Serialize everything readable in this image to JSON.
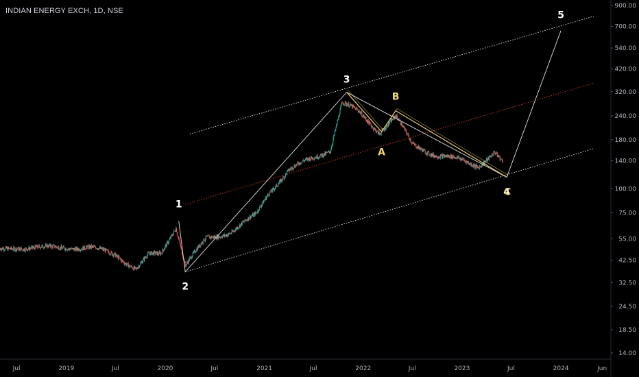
{
  "header": {
    "title": "INDIAN ENERGY EXCH, 1D, NSE"
  },
  "colors": {
    "background": "#000000",
    "up_candle": "#26a69a",
    "down_candle": "#ef5350",
    "channel_line": "#d8d8d8",
    "median_line": "#c0392b",
    "impulse_wave": "#cfcfcf",
    "corrective_wave": "#e8d36a",
    "axis_text": "#b2b5be",
    "impulse_label": "#ffffff",
    "corrective_label": "#f5d76e"
  },
  "chart_data": {
    "type": "candlestick",
    "title": "INDIAN ENERGY EXCH, 1D, NSE",
    "y_scale": "log",
    "ylim": [
      13,
      960
    ],
    "xlim": [
      "2018-05-01",
      "2024-07-01"
    ],
    "y_ticks": [
      "900.00",
      "700.00",
      "540.00",
      "420.00",
      "320.00",
      "240.00",
      "180.00",
      "140.00",
      "100.00",
      "75.00",
      "55.00",
      "42.50",
      "32.50",
      "24.50",
      "18.50",
      "14.00"
    ],
    "x_ticks": [
      {
        "date": "2018-07-01",
        "label": "Jul"
      },
      {
        "date": "2019-01-01",
        "label": "2019"
      },
      {
        "date": "2019-07-01",
        "label": "Jul"
      },
      {
        "date": "2020-01-01",
        "label": "2020"
      },
      {
        "date": "2020-07-01",
        "label": "Jul"
      },
      {
        "date": "2021-01-01",
        "label": "2021"
      },
      {
        "date": "2021-07-01",
        "label": "Jul"
      },
      {
        "date": "2022-01-01",
        "label": "2022"
      },
      {
        "date": "2022-07-01",
        "label": "Jul"
      },
      {
        "date": "2023-01-01",
        "label": "2023"
      },
      {
        "date": "2023-07-01",
        "label": "Jul"
      },
      {
        "date": "2024-01-01",
        "label": "2024"
      },
      {
        "date": "2024-06-01",
        "label": "Jun"
      }
    ],
    "price_path": [
      {
        "date": "2018-05-01",
        "price": 48
      },
      {
        "date": "2018-07-01",
        "price": 50
      },
      {
        "date": "2018-10-01",
        "price": 49
      },
      {
        "date": "2019-01-01",
        "price": 50
      },
      {
        "date": "2019-04-01",
        "price": 49
      },
      {
        "date": "2019-07-01",
        "price": 46
      },
      {
        "date": "2019-09-15",
        "price": 38
      },
      {
        "date": "2019-11-01",
        "price": 45
      },
      {
        "date": "2019-12-15",
        "price": 46
      },
      {
        "date": "2020-02-10",
        "price": 64
      },
      {
        "date": "2020-03-15",
        "price": 40
      },
      {
        "date": "2020-06-01",
        "price": 55
      },
      {
        "date": "2020-09-01",
        "price": 60
      },
      {
        "date": "2020-12-01",
        "price": 73
      },
      {
        "date": "2021-01-15",
        "price": 95
      },
      {
        "date": "2021-04-01",
        "price": 125
      },
      {
        "date": "2021-07-01",
        "price": 145
      },
      {
        "date": "2021-09-01",
        "price": 160
      },
      {
        "date": "2021-10-15",
        "price": 280
      },
      {
        "date": "2021-12-15",
        "price": 250
      },
      {
        "date": "2022-03-01",
        "price": 198
      },
      {
        "date": "2022-05-01",
        "price": 238
      },
      {
        "date": "2022-07-01",
        "price": 170
      },
      {
        "date": "2022-10-01",
        "price": 150
      },
      {
        "date": "2023-01-01",
        "price": 140
      },
      {
        "date": "2023-03-01",
        "price": 132
      },
      {
        "date": "2023-05-01",
        "price": 155
      },
      {
        "date": "2023-06-01",
        "price": 135
      }
    ],
    "channel": {
      "upper": [
        {
          "date": "2020-04-01",
          "price": 193
        },
        {
          "date": "2024-05-01",
          "price": 790
        }
      ],
      "median": [
        {
          "date": "2020-03-15",
          "price": 83
        },
        {
          "date": "2024-05-01",
          "price": 355
        }
      ],
      "lower": [
        {
          "date": "2020-03-15",
          "price": 37
        },
        {
          "date": "2024-05-01",
          "price": 162
        }
      ]
    },
    "impulse_waves": [
      {
        "date": "2020-02-20",
        "price": 68
      },
      {
        "date": "2020-03-15",
        "price": 37
      },
      {
        "date": "2021-11-01",
        "price": 318
      },
      {
        "date": "2023-06-15",
        "price": 115
      },
      {
        "date": "2024-01-01",
        "price": 665
      }
    ],
    "corrective_waves": [
      {
        "date": "2021-11-01",
        "price": 318
      },
      {
        "date": "2022-03-10",
        "price": 198
      },
      {
        "date": "2022-05-01",
        "price": 255
      },
      {
        "date": "2023-06-15",
        "price": 115
      }
    ],
    "wave_labels": [
      {
        "text": "1",
        "kind": "impulse",
        "date": "2020-02-20",
        "price": 68
      },
      {
        "text": "2",
        "kind": "impulse",
        "date": "2020-03-15",
        "price": 37
      },
      {
        "text": "3",
        "kind": "impulse",
        "date": "2021-11-01",
        "price": 318
      },
      {
        "text": "A",
        "kind": "corrective",
        "date": "2022-03-10",
        "price": 198
      },
      {
        "text": "B",
        "kind": "corrective",
        "date": "2022-05-01",
        "price": 255
      },
      {
        "text": "4",
        "kind": "impulse",
        "date": "2023-06-15",
        "price": 115
      },
      {
        "text": "C",
        "kind": "corrective",
        "date": "2023-06-15",
        "price": 115
      },
      {
        "text": "5",
        "kind": "impulse",
        "date": "2024-01-01",
        "price": 665
      }
    ]
  }
}
